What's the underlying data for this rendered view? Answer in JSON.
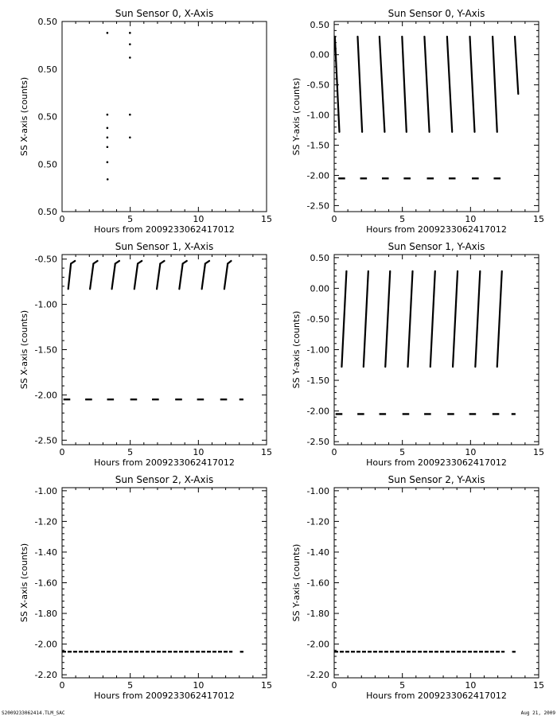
{
  "footer": {
    "left": "S2009233062414.TLM_SAC",
    "right": "Aug 21, 2009"
  },
  "chart_data": [
    {
      "type": "scatter",
      "title": "Sun Sensor 0, X-Axis",
      "xlabel": "Hours from 2009233062417012",
      "ylabel": "SS X-axis (counts)",
      "xlim": [
        0,
        15
      ],
      "ylim": [
        0.495,
        0.505
      ],
      "xticks": [
        0,
        5,
        10,
        15
      ],
      "yticks": [
        0.495,
        0.4975,
        0.5,
        0.5025,
        0.505
      ],
      "ytick_labels": [
        "0.50",
        "0.50",
        "0.50",
        "0.50",
        "0.50"
      ],
      "x_tick_labels": [
        "0",
        "5",
        "10",
        "15"
      ],
      "points": [
        [
          3.32,
          0.5044
        ],
        [
          3.32,
          0.5001
        ],
        [
          3.32,
          0.4994
        ],
        [
          3.32,
          0.4989
        ],
        [
          3.32,
          0.4984
        ],
        [
          3.32,
          0.4976
        ],
        [
          3.34,
          0.4967
        ],
        [
          4.98,
          0.5044
        ],
        [
          4.98,
          0.5038
        ],
        [
          4.98,
          0.5031
        ],
        [
          4.98,
          0.5001
        ],
        [
          4.98,
          0.4989
        ]
      ]
    },
    {
      "type": "scatter",
      "title": "Sun Sensor 0, Y-Axis",
      "xlabel": "Hours from 2009233062417012",
      "ylabel": "SS Y-axis (counts)",
      "xlim": [
        0,
        15
      ],
      "ylim": [
        -2.6,
        0.55
      ],
      "xticks": [
        0,
        5,
        10,
        15
      ],
      "x_tick_labels": [
        "0",
        "5",
        "10",
        "15"
      ],
      "yticks": [
        0.5,
        0,
        -0.5,
        -1,
        -1.5,
        -2,
        -2.5
      ],
      "ytick_labels": [
        "0.50",
        "0.00",
        "-0.50",
        "-1.00",
        "-1.50",
        "-2.00",
        "-2.50"
      ],
      "ramps": [
        [
          0.05,
          0.3,
          0.38,
          -1.28
        ],
        [
          1.72,
          0.3,
          2.05,
          -1.28
        ],
        [
          3.32,
          0.3,
          3.7,
          -1.28
        ],
        [
          4.98,
          0.3,
          5.3,
          -1.28
        ],
        [
          6.62,
          0.3,
          6.98,
          -1.28
        ],
        [
          8.28,
          0.3,
          8.65,
          -1.28
        ],
        [
          9.95,
          0.3,
          10.3,
          -1.28
        ],
        [
          11.62,
          0.3,
          11.95,
          -1.28
        ],
        [
          13.25,
          0.3,
          13.5,
          -0.65
        ]
      ],
      "baseline_y": -2.05,
      "baseline_segments": [
        [
          0.3,
          0.8
        ],
        [
          1.9,
          2.4
        ],
        [
          3.5,
          4.0
        ],
        [
          5.1,
          5.6
        ],
        [
          6.8,
          7.3
        ],
        [
          8.4,
          8.9
        ],
        [
          10.1,
          10.6
        ],
        [
          11.7,
          12.2
        ]
      ]
    },
    {
      "type": "scatter",
      "title": "Sun Sensor 1, X-Axis",
      "xlabel": "Hours from 2009233062417012",
      "ylabel": "SS X-axis (counts)",
      "xlim": [
        0,
        15
      ],
      "ylim": [
        -2.55,
        -0.45
      ],
      "xticks": [
        0,
        5,
        10,
        15
      ],
      "x_tick_labels": [
        "0",
        "5",
        "10",
        "15"
      ],
      "yticks": [
        -0.5,
        -1,
        -1.5,
        -2,
        -2.5
      ],
      "ytick_labels": [
        "-0.50",
        "-1.00",
        "-1.50",
        "-2.00",
        "-2.50"
      ],
      "ramps": [
        [
          0.45,
          -0.83,
          0.65,
          -0.55
        ],
        [
          2.05,
          -0.83,
          2.3,
          -0.55
        ],
        [
          3.65,
          -0.83,
          3.9,
          -0.55
        ],
        [
          5.3,
          -0.83,
          5.55,
          -0.55
        ],
        [
          6.95,
          -0.83,
          7.2,
          -0.55
        ],
        [
          8.6,
          -0.83,
          8.85,
          -0.55
        ],
        [
          10.25,
          -0.83,
          10.5,
          -0.55
        ],
        [
          11.9,
          -0.83,
          12.15,
          -0.55
        ]
      ],
      "ramp_caps": [
        [
          0.65,
          0.95
        ],
        [
          2.3,
          2.6
        ],
        [
          3.9,
          4.2
        ],
        [
          5.55,
          5.85
        ],
        [
          7.2,
          7.5
        ],
        [
          8.85,
          9.15
        ],
        [
          10.5,
          10.8
        ],
        [
          12.15,
          12.4
        ]
      ],
      "baseline_y": -2.05,
      "baseline_segments": [
        [
          0.1,
          0.6
        ],
        [
          1.7,
          2.2
        ],
        [
          3.3,
          3.8
        ],
        [
          5.0,
          5.5
        ],
        [
          6.6,
          7.1
        ],
        [
          8.3,
          8.8
        ],
        [
          9.9,
          10.4
        ],
        [
          11.6,
          12.1
        ],
        [
          13.0,
          13.3
        ]
      ]
    },
    {
      "type": "scatter",
      "title": "Sun Sensor 1, Y-Axis",
      "xlabel": "Hours from 2009233062417012",
      "ylabel": "SS Y-axis (counts)",
      "xlim": [
        0,
        15
      ],
      "ylim": [
        -2.55,
        0.55
      ],
      "xticks": [
        0,
        5,
        10,
        15
      ],
      "x_tick_labels": [
        "0",
        "5",
        "10",
        "15"
      ],
      "yticks": [
        0.5,
        0,
        -0.5,
        -1,
        -1.5,
        -2,
        -2.5
      ],
      "ytick_labels": [
        "0.50",
        "0.00",
        "-0.50",
        "-1.00",
        "-1.50",
        "-2.00",
        "-2.50"
      ],
      "ramps": [
        [
          0.55,
          -1.28,
          0.9,
          0.28
        ],
        [
          2.15,
          -1.28,
          2.5,
          0.28
        ],
        [
          3.75,
          -1.28,
          4.1,
          0.28
        ],
        [
          5.4,
          -1.28,
          5.75,
          0.28
        ],
        [
          7.05,
          -1.28,
          7.4,
          0.28
        ],
        [
          8.7,
          -1.28,
          9.05,
          0.28
        ],
        [
          10.35,
          -1.28,
          10.7,
          0.28
        ],
        [
          11.95,
          -1.28,
          12.3,
          0.28
        ]
      ],
      "baseline_y": -2.05,
      "baseline_segments": [
        [
          0.1,
          0.6
        ],
        [
          1.7,
          2.2
        ],
        [
          3.3,
          3.8
        ],
        [
          5.0,
          5.5
        ],
        [
          6.6,
          7.1
        ],
        [
          8.3,
          8.8
        ],
        [
          9.9,
          10.4
        ],
        [
          11.6,
          12.1
        ],
        [
          13.0,
          13.3
        ]
      ]
    },
    {
      "type": "scatter",
      "title": "Sun Sensor 2, X-Axis",
      "xlabel": "Hours from 2009233062417012",
      "ylabel": "SS X-axis (counts)",
      "xlim": [
        0,
        15
      ],
      "ylim": [
        -2.22,
        -0.98
      ],
      "xticks": [
        0,
        5,
        10,
        15
      ],
      "x_tick_labels": [
        "0",
        "5",
        "10",
        "15"
      ],
      "yticks": [
        -1.0,
        -1.2,
        -1.4,
        -1.6,
        -1.8,
        -2.0,
        -2.2
      ],
      "ytick_labels": [
        "-1.00",
        "-1.20",
        "-1.40",
        "-1.60",
        "-1.80",
        "-2.00",
        "-2.20"
      ],
      "baseline_y": -2.05,
      "baseline_segments": [
        [
          0.0,
          12.5
        ],
        [
          13.05,
          13.3
        ]
      ]
    },
    {
      "type": "scatter",
      "title": "Sun Sensor 2, Y-Axis",
      "xlabel": "Hours from 2009233062417012",
      "ylabel": "SS Y-axis (counts)",
      "xlim": [
        0,
        15
      ],
      "ylim": [
        -2.22,
        -0.98
      ],
      "xticks": [
        0,
        5,
        10,
        15
      ],
      "x_tick_labels": [
        "0",
        "5",
        "10",
        "15"
      ],
      "yticks": [
        -1.0,
        -1.2,
        -1.4,
        -1.6,
        -1.8,
        -2.0,
        -2.2
      ],
      "ytick_labels": [
        "-1.00",
        "-1.20",
        "-1.40",
        "-1.60",
        "-1.80",
        "-2.00",
        "-2.20"
      ],
      "baseline_y": -2.05,
      "baseline_segments": [
        [
          0.0,
          12.5
        ],
        [
          13.05,
          13.3
        ]
      ]
    }
  ]
}
